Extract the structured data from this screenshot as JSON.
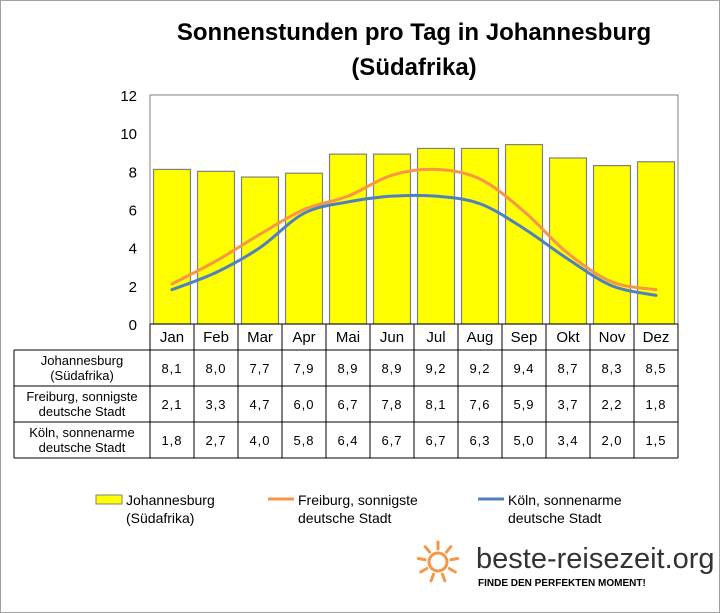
{
  "chart_data": {
    "type": "bar",
    "title_line1": "Sonnenstunden pro Tag in Johannesburg",
    "title_line2": "(Südafrika)",
    "categories": [
      "Jan",
      "Feb",
      "Mar",
      "Apr",
      "Mai",
      "Jun",
      "Jul",
      "Aug",
      "Sep",
      "Okt",
      "Nov",
      "Dez"
    ],
    "ylim": [
      0,
      12
    ],
    "yticks": [
      0,
      2,
      4,
      6,
      8,
      10,
      12
    ],
    "grid": false,
    "legend_position": "bottom",
    "series": [
      {
        "name_line1": "Johannesburg",
        "name_line2": "(Südafrika)",
        "kind": "bar",
        "color": "#ffff00",
        "values": [
          8.1,
          8.0,
          7.7,
          7.9,
          8.9,
          8.9,
          9.2,
          9.2,
          9.4,
          8.7,
          8.3,
          8.5
        ],
        "labels": [
          "8,1",
          "8,0",
          "7,7",
          "7,9",
          "8,9",
          "8,9",
          "9,2",
          "9,2",
          "9,4",
          "8,7",
          "8,3",
          "8,5"
        ]
      },
      {
        "name_line1": "Freiburg, sonnigste",
        "name_line2": "deutsche Stadt",
        "kind": "line",
        "color": "#f79646",
        "values": [
          2.1,
          3.3,
          4.7,
          6.0,
          6.7,
          7.8,
          8.1,
          7.6,
          5.9,
          3.7,
          2.2,
          1.8
        ],
        "labels": [
          "2,1",
          "3,3",
          "4,7",
          "6,0",
          "6,7",
          "7,8",
          "8,1",
          "7,6",
          "5,9",
          "3,7",
          "2,2",
          "1,8"
        ]
      },
      {
        "name_line1": "Köln, sonnenarme",
        "name_line2": "deutsche Stadt",
        "kind": "line",
        "color": "#4f81bd",
        "values": [
          1.8,
          2.7,
          4.0,
          5.8,
          6.4,
          6.7,
          6.7,
          6.3,
          5.0,
          3.4,
          2.0,
          1.5
        ],
        "labels": [
          "1,8",
          "2,7",
          "4,0",
          "5,8",
          "6,4",
          "6,7",
          "6,7",
          "6,3",
          "5,0",
          "3,4",
          "2,0",
          "1,5"
        ]
      }
    ]
  },
  "branding": {
    "site": "beste-reisezeit.org",
    "tagline": "FINDE DEN PERFEKTEN MOMENT!",
    "logo_icon": "sun-icon",
    "logo_color": "#f79646"
  }
}
